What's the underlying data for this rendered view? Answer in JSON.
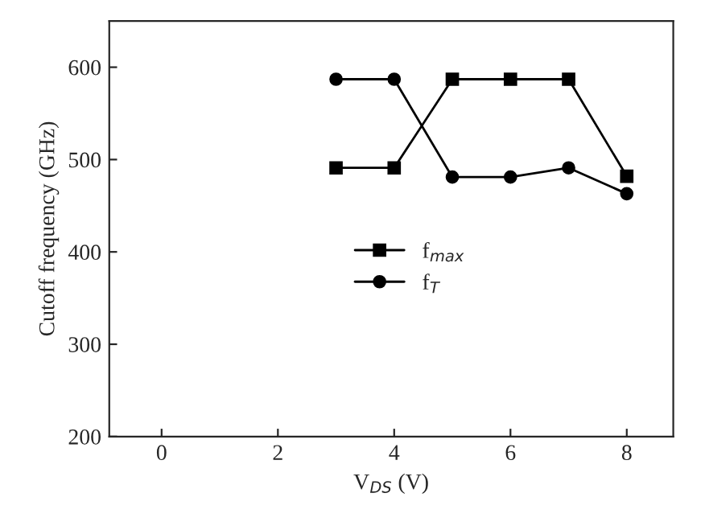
{
  "chart_data": {
    "type": "line",
    "xlabel": "V$_{DS}$ (V)",
    "ylabel": "Cutoff frequency (GHz)",
    "x": [
      3,
      4,
      5,
      6,
      7,
      8
    ],
    "series": [
      {
        "name": "f$_{max}$",
        "color": "#000000",
        "values": [
          491,
          491,
          587,
          587,
          587,
          482
        ],
        "marker": "square"
      },
      {
        "name": "f$_{T}$",
        "color": "#000000",
        "values": [
          587,
          587,
          481,
          481,
          491,
          463
        ],
        "marker": "circle"
      }
    ],
    "xlim": [
      -0.9,
      8.8
    ],
    "ylim": [
      200,
      650
    ],
    "xticks": [
      0,
      2,
      4,
      6,
      8
    ],
    "yticks": [
      200,
      300,
      400,
      500,
      600
    ],
    "grid": false,
    "legend": "center left",
    "line_style": "solid"
  }
}
